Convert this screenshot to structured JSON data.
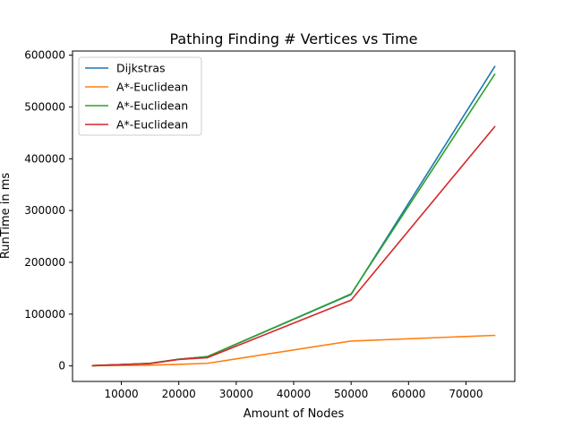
{
  "chart_data": {
    "type": "line",
    "title": "Pathing Finding # Vertices vs Time",
    "xlabel": "Amount of Nodes",
    "ylabel": "RunTime in ms",
    "xlim": [
      1500,
      78500
    ],
    "ylim": [
      -30000,
      608000
    ],
    "x_ticks": [
      10000,
      20000,
      30000,
      40000,
      50000,
      60000,
      70000
    ],
    "y_ticks": [
      0,
      100000,
      200000,
      300000,
      400000,
      500000,
      600000
    ],
    "grid": false,
    "legend_position": "top-left",
    "x": [
      5000,
      10000,
      15000,
      20000,
      25000,
      50000,
      75000
    ],
    "series": [
      {
        "name": "Dijkstras",
        "color": "#1f77b4",
        "values": [
          500,
          2500,
          5000,
          13000,
          18000,
          138000,
          578000
        ]
      },
      {
        "name": "A*-Euclidean",
        "color": "#ff7f0e",
        "values": [
          300,
          800,
          1500,
          3000,
          5000,
          48000,
          59000
        ]
      },
      {
        "name": "A*-Euclidean",
        "color": "#2ca02c",
        "values": [
          500,
          2500,
          5000,
          13000,
          18000,
          139000,
          563000
        ]
      },
      {
        "name": "A*-Euclidean",
        "color": "#d62728",
        "values": [
          500,
          2500,
          4500,
          12500,
          16000,
          127000,
          462000
        ]
      }
    ]
  }
}
